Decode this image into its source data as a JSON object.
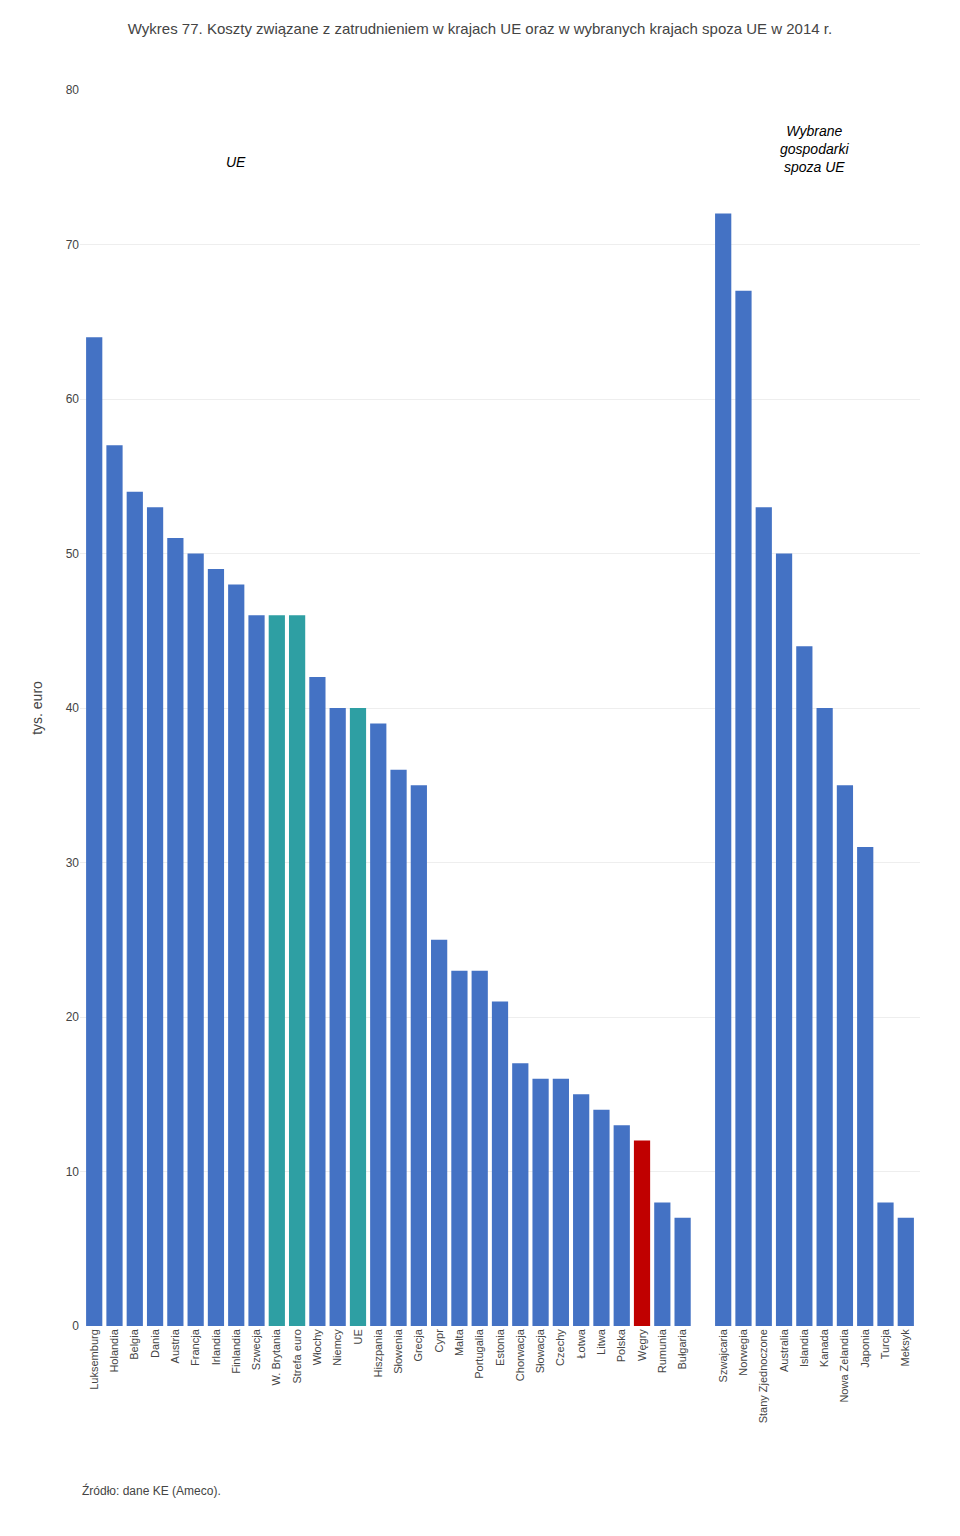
{
  "chart_data": {
    "type": "bar",
    "title": "Wykres 77. Koszty związane z zatrudnieniem w krajach UE oraz w wybranych krajach spoza UE w 2014 r.",
    "y_label": "tys. euro",
    "source": "Źródło: dane KE (Ameco).",
    "annotations": [
      {
        "text": "UE",
        "x": 7,
        "y": 76
      },
      {
        "text": "Wybrane\ngospodarki\nspoza UE",
        "x": 35.5,
        "y": 78
      }
    ],
    "categories": [
      "Luksemburg",
      "Holandia",
      "Belgia",
      "Dania",
      "Austria",
      "Francja",
      "Irlandia",
      "Finlandia",
      "Szwecja",
      "W. Brytania",
      "Strefa euro",
      "Włochy",
      "Niemcy",
      "UE",
      "Hiszpania",
      "Słowenia",
      "Grecja",
      "Cypr",
      "Malta",
      "Portugalia",
      "Estonia",
      "Chorwacja",
      "Słowacja",
      "Czechy",
      "Łotwa",
      "Litwa",
      "Polska",
      "Węgry",
      "Rumunia",
      "Bułgaria",
      null,
      "Szwajcaria",
      "Norwegia",
      "Stany Zjednoczone",
      "Australia",
      "Islandia",
      "Kanada",
      "Nowa Zelandia",
      "Japonia",
      "Turcja",
      "Meksyk"
    ],
    "values": [
      64,
      57,
      54,
      53,
      51,
      50,
      49,
      48,
      46,
      46,
      46,
      42,
      40,
      40,
      39,
      36,
      35,
      25,
      23,
      23,
      21,
      17,
      16,
      16,
      15,
      14,
      13,
      12,
      8,
      7,
      null,
      72,
      67,
      53,
      50,
      44,
      40,
      35,
      31,
      8,
      7
    ],
    "colors": [
      "#4472C4",
      "#4472C4",
      "#4472C4",
      "#4472C4",
      "#4472C4",
      "#4472C4",
      "#4472C4",
      "#4472C4",
      "#4472C4",
      "#2E9FA3",
      "#2E9FA3",
      "#4472C4",
      "#4472C4",
      "#2E9FA3",
      "#4472C4",
      "#4472C4",
      "#4472C4",
      "#4472C4",
      "#4472C4",
      "#4472C4",
      "#4472C4",
      "#4472C4",
      "#4472C4",
      "#4472C4",
      "#4472C4",
      "#4472C4",
      "#4472C4",
      "#C00000",
      "#4472C4",
      "#4472C4",
      null,
      "#4472C4",
      "#4472C4",
      "#4472C4",
      "#4472C4",
      "#4472C4",
      "#4472C4",
      "#4472C4",
      "#4472C4",
      "#4472C4",
      "#4472C4"
    ],
    "ylim": [
      0,
      80
    ],
    "yticks": [
      0,
      10,
      20,
      30,
      40,
      50,
      60,
      70,
      80
    ],
    "grid": true
  }
}
